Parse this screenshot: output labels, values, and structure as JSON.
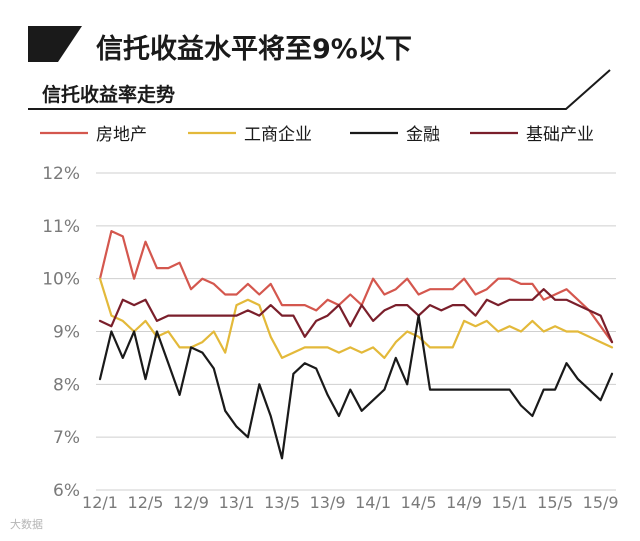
{
  "header": {
    "title": "信托收益水平将至9%以下",
    "subtitle": "信托收益率走势"
  },
  "watermark": "大数据",
  "colors": {
    "accent": "#1a1a1a",
    "grid": "#cfcfcf",
    "axis_text": "#7a7a7a"
  },
  "chart_data": {
    "type": "line",
    "title": "信托收益率走势",
    "xlabel": "",
    "ylabel": "",
    "y_ticks": [
      "6%",
      "7%",
      "8%",
      "9%",
      "10%",
      "11%",
      "12%"
    ],
    "ylim": [
      6,
      12
    ],
    "x_ticks": [
      "12/1",
      "12/5",
      "12/9",
      "13/1",
      "13/5",
      "13/9",
      "14/1",
      "14/5",
      "14/9",
      "15/1",
      "15/5",
      "15/9"
    ],
    "x": [
      "12/1",
      "12/2",
      "12/3",
      "12/4",
      "12/5",
      "12/6",
      "12/7",
      "12/8",
      "12/9",
      "12/10",
      "12/11",
      "12/12",
      "13/1",
      "13/2",
      "13/3",
      "13/4",
      "13/5",
      "13/6",
      "13/7",
      "13/8",
      "13/9",
      "13/10",
      "13/11",
      "13/12",
      "14/1",
      "14/2",
      "14/3",
      "14/4",
      "14/5",
      "14/6",
      "14/7",
      "14/8",
      "14/9",
      "14/10",
      "14/11",
      "14/12",
      "15/1",
      "15/2",
      "15/3",
      "15/4",
      "15/5",
      "15/6",
      "15/7",
      "15/8",
      "15/9",
      "15/10"
    ],
    "legend_position": "top",
    "grid": true,
    "series": [
      {
        "name": "房地产",
        "color": "#d4574e",
        "values": [
          10.0,
          10.9,
          10.8,
          10.0,
          10.7,
          10.2,
          10.2,
          10.3,
          9.8,
          10.0,
          9.9,
          9.7,
          9.7,
          9.9,
          9.7,
          9.9,
          9.5,
          9.5,
          9.5,
          9.4,
          9.6,
          9.5,
          9.7,
          9.5,
          10.0,
          9.7,
          9.8,
          10.0,
          9.7,
          9.8,
          9.8,
          9.8,
          10.0,
          9.7,
          9.8,
          10.0,
          10.0,
          9.9,
          9.9,
          9.6,
          9.7,
          9.8,
          9.6,
          9.4,
          9.1,
          8.8
        ]
      },
      {
        "name": "工商企业",
        "color": "#e3b93a",
        "values": [
          10.0,
          9.3,
          9.2,
          9.0,
          9.2,
          8.9,
          9.0,
          8.7,
          8.7,
          8.8,
          9.0,
          8.6,
          9.5,
          9.6,
          9.5,
          8.9,
          8.5,
          8.6,
          8.7,
          8.7,
          8.7,
          8.6,
          8.7,
          8.6,
          8.7,
          8.5,
          8.8,
          9.0,
          8.9,
          8.7,
          8.7,
          8.7,
          9.2,
          9.1,
          9.2,
          9.0,
          9.1,
          9.0,
          9.2,
          9.0,
          9.1,
          9.0,
          9.0,
          8.9,
          8.8,
          8.7
        ]
      },
      {
        "name": "金融",
        "color": "#1a1a1a",
        "values": [
          8.1,
          9.0,
          8.5,
          9.0,
          8.1,
          9.0,
          8.4,
          7.8,
          8.7,
          8.6,
          8.3,
          7.5,
          7.2,
          7.0,
          8.0,
          7.4,
          6.6,
          8.2,
          8.4,
          8.3,
          7.8,
          7.4,
          7.9,
          7.5,
          7.7,
          7.9,
          8.5,
          8.0,
          9.3,
          7.9,
          7.9,
          7.9,
          7.9,
          7.9,
          7.9,
          7.9,
          7.9,
          7.6,
          7.4,
          7.9,
          7.9,
          8.4,
          8.1,
          7.9,
          7.7,
          8.2
        ]
      },
      {
        "name": "基础产业",
        "color": "#7a1f2b",
        "values": [
          9.2,
          9.1,
          9.6,
          9.5,
          9.6,
          9.2,
          9.3,
          9.3,
          9.3,
          9.3,
          9.3,
          9.3,
          9.3,
          9.4,
          9.3,
          9.5,
          9.3,
          9.3,
          8.9,
          9.2,
          9.3,
          9.5,
          9.1,
          9.5,
          9.2,
          9.4,
          9.5,
          9.5,
          9.3,
          9.5,
          9.4,
          9.5,
          9.5,
          9.3,
          9.6,
          9.5,
          9.6,
          9.6,
          9.6,
          9.8,
          9.6,
          9.6,
          9.5,
          9.4,
          9.3,
          8.8
        ]
      }
    ]
  }
}
